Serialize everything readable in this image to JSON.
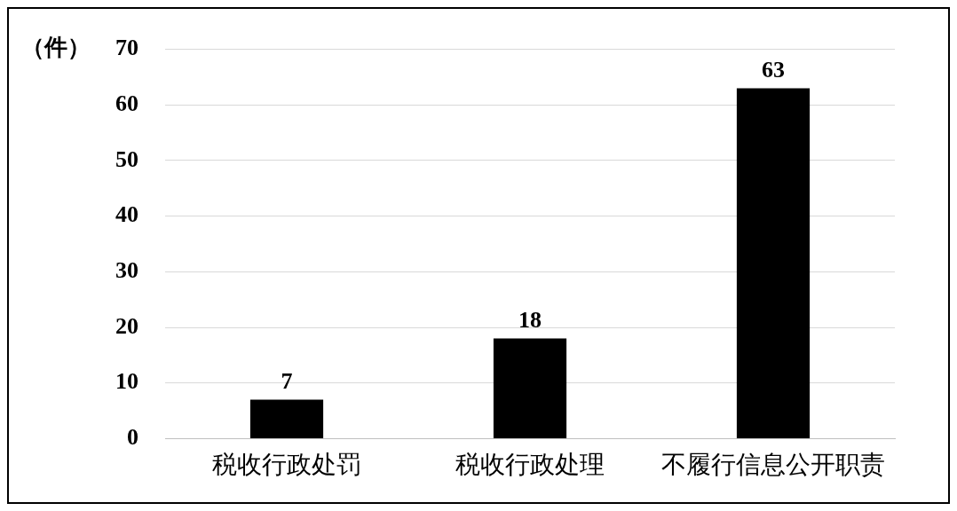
{
  "chart_data": {
    "type": "bar",
    "ylabel": "（件）",
    "categories": [
      "税收行政处罚",
      "税收行政处理",
      "不履行信息公开职责"
    ],
    "values": [
      7,
      18,
      63
    ],
    "color": "#000000",
    "ylim": [
      0,
      70
    ],
    "yticks": [
      0,
      10,
      20,
      30,
      40,
      50,
      60,
      70
    ],
    "grid": "y",
    "data_labels": true
  }
}
